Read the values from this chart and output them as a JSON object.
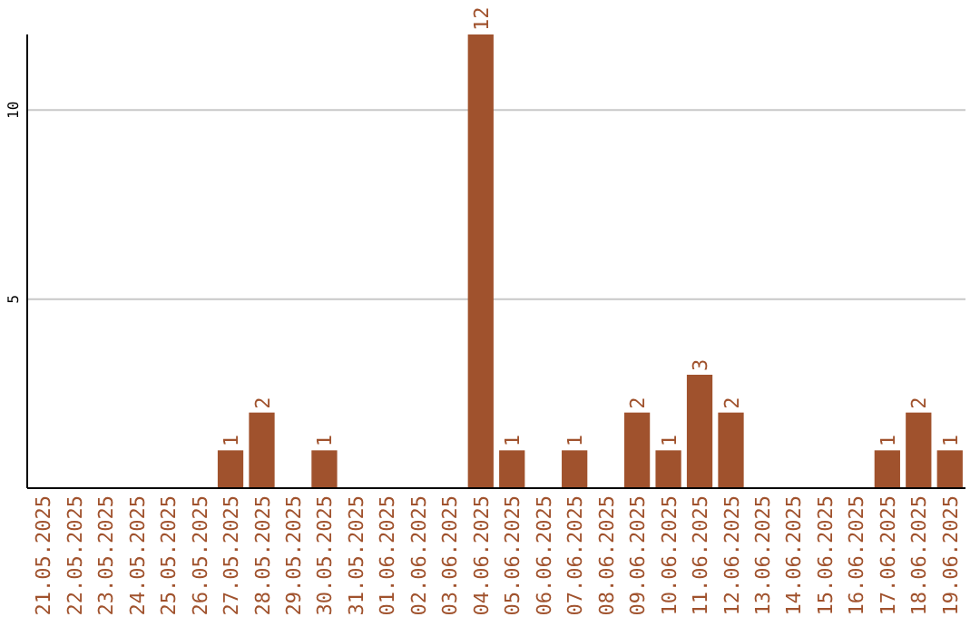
{
  "chart_data": {
    "type": "bar",
    "categories": [
      "21.05.2025",
      "22.05.2025",
      "23.05.2025",
      "24.05.2025",
      "25.05.2025",
      "26.05.2025",
      "27.05.2025",
      "28.05.2025",
      "29.05.2025",
      "30.05.2025",
      "31.05.2025",
      "01.06.2025",
      "02.06.2025",
      "03.06.2025",
      "04.06.2025",
      "05.06.2025",
      "06.06.2025",
      "07.06.2025",
      "08.06.2025",
      "09.06.2025",
      "10.06.2025",
      "11.06.2025",
      "12.06.2025",
      "13.06.2025",
      "14.06.2025",
      "15.06.2025",
      "16.06.2025",
      "17.06.2025",
      "18.06.2025",
      "19.06.2025"
    ],
    "values": [
      0,
      0,
      0,
      0,
      0,
      0,
      1,
      2,
      0,
      1,
      0,
      0,
      0,
      0,
      12,
      1,
      0,
      1,
      0,
      2,
      1,
      3,
      2,
      0,
      0,
      0,
      0,
      1,
      2,
      1
    ],
    "value_labels": [
      null,
      null,
      null,
      null,
      null,
      null,
      "1",
      "2",
      null,
      "1",
      null,
      null,
      null,
      null,
      "12",
      "1",
      null,
      "1",
      null,
      "2",
      "1",
      "3",
      "2",
      null,
      null,
      null,
      null,
      "1",
      "2",
      "1"
    ],
    "color": "#a0522d",
    "ylim": [
      0,
      12
    ],
    "yticks": [
      5,
      10
    ],
    "grid": "y"
  }
}
